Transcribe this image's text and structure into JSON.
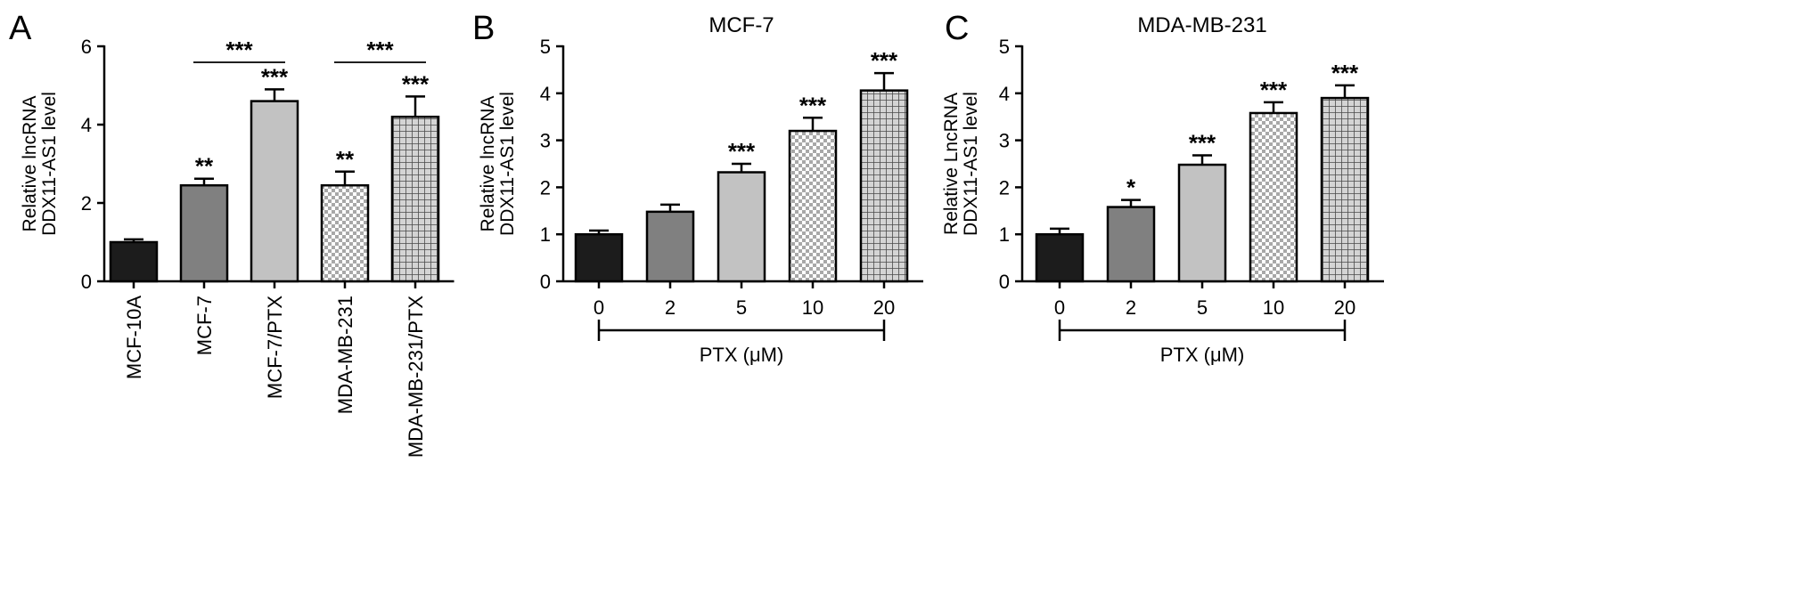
{
  "chart_data": [
    {
      "panel_letter": "A",
      "type": "bar",
      "title": "",
      "ylabel_lines": [
        "Relative lncRNA",
        "DDX11-AS1 level"
      ],
      "xlabel": "",
      "ylim": [
        0,
        6
      ],
      "yticks": [
        0,
        2,
        4,
        6
      ],
      "categories": [
        "MCF-10A",
        "MCF-7",
        "MCF-7/PTX",
        "MDA-MB-231",
        "MDA-MB-231/PTX"
      ],
      "values": [
        1.0,
        2.45,
        4.6,
        2.45,
        4.2
      ],
      "errors": [
        0.07,
        0.17,
        0.3,
        0.35,
        0.52
      ],
      "significance": [
        "",
        "**",
        "***",
        "**",
        "***"
      ],
      "comparisons": [
        {
          "from": 1,
          "to": 2,
          "label": "***"
        },
        {
          "from": 3,
          "to": 4,
          "label": "***"
        }
      ],
      "fills": [
        "black",
        "darkgray",
        "lightgray",
        "checker",
        "grid"
      ]
    },
    {
      "panel_letter": "B",
      "type": "bar",
      "title": "MCF-7",
      "ylabel_lines": [
        "Relative lncRNA",
        "DDX11-AS1 level"
      ],
      "xlabel": "PTX (μM)",
      "ylim": [
        0,
        5
      ],
      "yticks": [
        0,
        1,
        2,
        3,
        4,
        5
      ],
      "categories": [
        "0",
        "2",
        "5",
        "10",
        "20"
      ],
      "values": [
        1.0,
        1.48,
        2.32,
        3.2,
        4.06
      ],
      "errors": [
        0.08,
        0.15,
        0.18,
        0.28,
        0.37
      ],
      "significance": [
        "",
        "",
        "***",
        "***",
        "***"
      ],
      "fills": [
        "black",
        "darkgray",
        "lightgray",
        "checker",
        "grid"
      ]
    },
    {
      "panel_letter": "C",
      "type": "bar",
      "title": "MDA-MB-231",
      "ylabel_lines": [
        "Relative LncRNA",
        "DDX11-AS1 level"
      ],
      "xlabel": "PTX (μM)",
      "ylim": [
        0,
        5
      ],
      "yticks": [
        0,
        1,
        2,
        3,
        4,
        5
      ],
      "categories": [
        "0",
        "2",
        "5",
        "10",
        "20"
      ],
      "values": [
        1.0,
        1.58,
        2.48,
        3.58,
        3.9
      ],
      "errors": [
        0.12,
        0.15,
        0.2,
        0.23,
        0.27
      ],
      "significance": [
        "",
        "*",
        "***",
        "***",
        "***"
      ],
      "fills": [
        "black",
        "darkgray",
        "lightgray",
        "checker",
        "grid"
      ]
    }
  ],
  "colors": {
    "axis": "#000000",
    "black": "#1c1c1c",
    "darkgray": "#808080",
    "lightgray": "#c2c2c2",
    "pattern_line": "#6e6e6e"
  }
}
